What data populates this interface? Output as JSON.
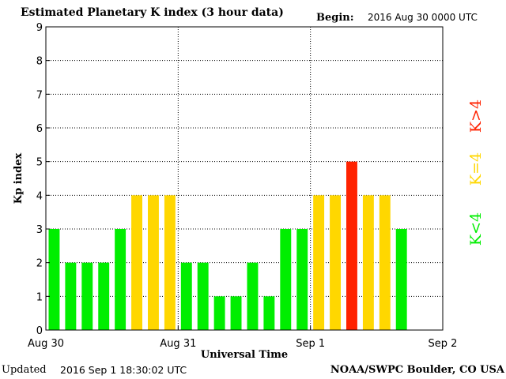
{
  "header": {
    "title": "Estimated Planetary K index (3 hour data)",
    "begin_label": "Begin:",
    "begin_value": "2016 Aug 30 0000 UTC"
  },
  "footer": {
    "updated_label": "Updated",
    "updated_value": "2016 Sep  1 18:30:02 UTC",
    "source": "NOAA/SWPC Boulder, CO USA"
  },
  "colors": {
    "below_storm": "#00ee00",
    "storm_threshold": "#ffd700",
    "above_storm": "#ff2200"
  },
  "chart_data": {
    "type": "bar",
    "title": "Estimated Planetary K index (3 hour data)",
    "xlabel": "Universal Time",
    "ylabel": "Kp index",
    "ylim": [
      0,
      9
    ],
    "yticks": [
      "0",
      "1",
      "2",
      "3",
      "4",
      "5",
      "6",
      "7",
      "8",
      "9"
    ],
    "xticks": [
      "Aug 30",
      "Aug 31",
      "Sep 1",
      "Sep 2"
    ],
    "slots": 24,
    "grid": true,
    "values": [
      3,
      2,
      2,
      2,
      3,
      4,
      4,
      4,
      2,
      2,
      1,
      1,
      2,
      1,
      3,
      3,
      4,
      4,
      5,
      4,
      4,
      3
    ],
    "legend": [
      {
        "label": "K<4",
        "color_key": "below_storm"
      },
      {
        "label": "K=4",
        "color_key": "storm_threshold"
      },
      {
        "label": "K>4",
        "color_key": "above_storm"
      }
    ],
    "legend_position": "right"
  }
}
